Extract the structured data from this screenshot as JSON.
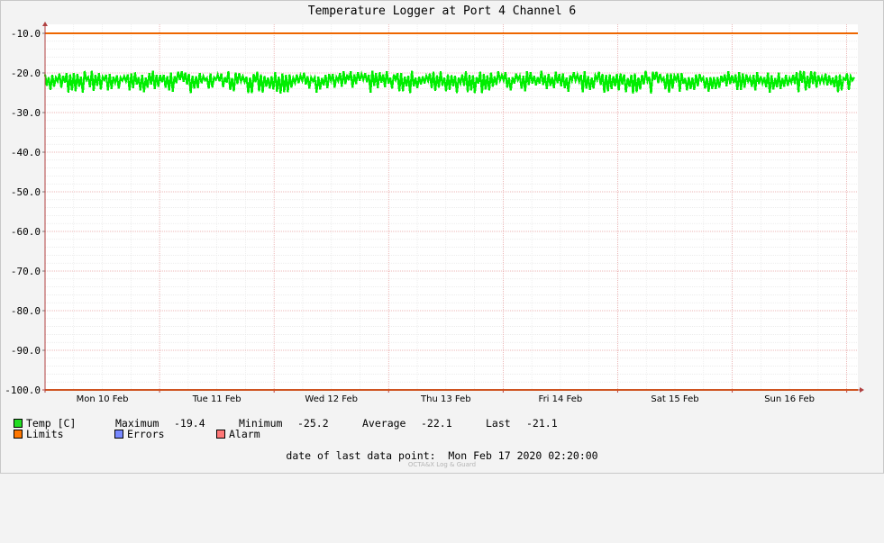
{
  "chart_data": {
    "type": "line",
    "title": "Temperature Logger at Port 4 Channel 6",
    "ylim": [
      -100,
      -10
    ],
    "yticks": [
      -10,
      -20,
      -30,
      -40,
      -50,
      -60,
      -70,
      -80,
      -90,
      -100
    ],
    "ytick_labels": [
      "-10.0",
      "-20.0",
      "-30.0",
      "-40.0",
      "-50.0",
      "-60.0",
      "-70.0",
      "-80.0",
      "-90.0",
      "-100.0"
    ],
    "x_start": "Mon 10 Feb 2020 00:00",
    "x_end": "Mon 17 Feb 2020 02:20",
    "xticks": [
      {
        "label": "Mon 10 Feb",
        "date": "2020-02-10 12:00"
      },
      {
        "label": "Tue 11 Feb",
        "date": "2020-02-11 12:00"
      },
      {
        "label": "Wed 12 Feb",
        "date": "2020-02-12 12:00"
      },
      {
        "label": "Thu 13 Feb",
        "date": "2020-02-13 12:00"
      },
      {
        "label": "Fri 14 Feb",
        "date": "2020-02-14 12:00"
      },
      {
        "label": "Sat 15 Feb",
        "date": "2020-02-15 12:00"
      },
      {
        "label": "Sun 16 Feb",
        "date": "2020-02-16 12:00"
      }
    ],
    "series": [
      {
        "name": "Temp [C]",
        "color": "#00ee00",
        "min": -25.2,
        "max": -19.4,
        "average": -22.1,
        "last": -21.1
      },
      {
        "name": "Limits",
        "color": "#ee6600",
        "upper": -10.0,
        "lower": -100.0
      }
    ],
    "grid": true
  },
  "legend": {
    "temp_label": "Temp [C]",
    "maximum_label": "Maximum",
    "maximum_value": "-19.4",
    "minimum_label": "Minimum",
    "minimum_value": "-25.2",
    "average_label": "Average",
    "average_value": "-22.1",
    "last_label": "Last",
    "last_value": "-21.1",
    "limits_label": "Limits",
    "errors_label": "Errors",
    "alarm_label": "Alarm",
    "colors": {
      "temp": "#22dd22",
      "limits": "#ff7700",
      "errors": "#7788ff",
      "alarm": "#ff7777"
    }
  },
  "footer": {
    "last_point_label": "date of last data point:",
    "last_point_value": "Mon Feb 17 2020 02:20:00",
    "watermark": "OCTA&X Log & Guard"
  }
}
